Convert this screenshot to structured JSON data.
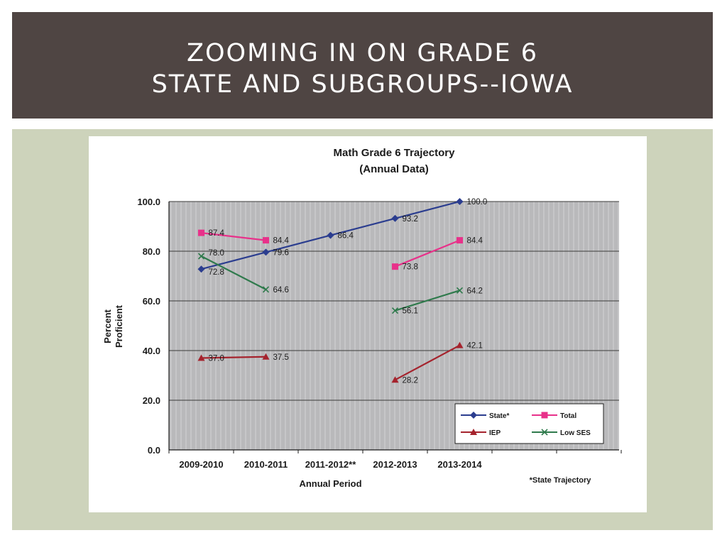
{
  "slide": {
    "title_line1": "ZOOMING IN ON GRADE 6",
    "title_line2": "STATE AND SUBGROUPS--IOWA"
  },
  "chart_data": {
    "type": "line",
    "title": [
      "Math Grade 6 Trajectory",
      "(Annual Data)"
    ],
    "xlabel": "Annual Period",
    "ylabel": [
      "Percent",
      "Proficient"
    ],
    "categories": [
      "2009-2010",
      "2010-2011",
      "2011-2012**",
      "2012-2013",
      "2013-2014"
    ],
    "ylim": [
      0,
      100
    ],
    "yticks": [
      "0.0",
      "20.0",
      "40.0",
      "60.0",
      "80.0",
      "100.0"
    ],
    "grid": true,
    "legend_position": "bottom-right",
    "footnote": "*State Trajectory",
    "series": [
      {
        "name": "State*",
        "color": "#2b3d8f",
        "marker": "diamond",
        "values": [
          72.8,
          79.6,
          86.4,
          93.2,
          100.0
        ],
        "labels": [
          "72.8",
          "79.6",
          "86.4",
          "93.2",
          "100.0"
        ]
      },
      {
        "name": "Total",
        "color": "#e8318a",
        "marker": "square",
        "values": [
          87.4,
          84.4,
          null,
          73.8,
          84.4
        ],
        "labels": [
          "87.4",
          "84.4",
          "",
          "73.8",
          "84.4"
        ]
      },
      {
        "name": "IEP",
        "color": "#a5232d",
        "marker": "triangle",
        "values": [
          37.0,
          37.5,
          null,
          28.2,
          42.1
        ],
        "labels": [
          "37.0",
          "37.5",
          "",
          "28.2",
          "42.1"
        ]
      },
      {
        "name": "Low SES",
        "color": "#2f7a4c",
        "marker": "x",
        "values": [
          78.0,
          64.6,
          null,
          56.1,
          64.2
        ],
        "labels": [
          "78.0",
          "64.6",
          "",
          "56.1",
          "64.2"
        ]
      }
    ]
  }
}
